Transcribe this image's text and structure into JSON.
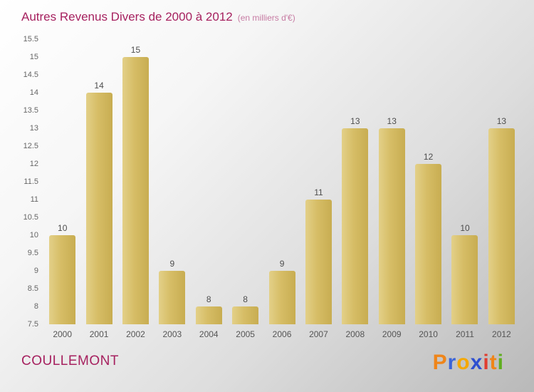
{
  "chart": {
    "title": "Autres Revenus Divers de 2000 à 2012",
    "subtitle": "(en milliers d'€)"
  },
  "chart_data": {
    "type": "bar",
    "title": "Autres Revenus Divers de 2000 à 2012",
    "subtitle": "(en milliers d'€)",
    "categories": [
      "2000",
      "2001",
      "2002",
      "2003",
      "2004",
      "2005",
      "2006",
      "2007",
      "2008",
      "2009",
      "2010",
      "2011",
      "2012"
    ],
    "values": [
      10,
      14,
      15,
      9,
      8,
      8,
      9,
      11,
      13,
      13,
      12,
      10,
      13
    ],
    "xlabel": "",
    "ylabel": "",
    "ylim": [
      7.5,
      15.5
    ],
    "ytick_step": 0.5,
    "grid": false,
    "legend": false,
    "value_labels": true,
    "bar_color": "#d6bd66"
  },
  "footer": {
    "commune": "COULLEMONT",
    "logo_text": "Proxiti",
    "logo_letters": [
      {
        "ch": "P",
        "color": "#ef8519"
      },
      {
        "ch": "r",
        "color": "#3b64d8"
      },
      {
        "ch": "o",
        "color": "#f5a800"
      },
      {
        "ch": "x",
        "color": "#2e4fd0"
      },
      {
        "ch": "i",
        "color": "#e03c2e"
      },
      {
        "ch": "t",
        "color": "#ef8519"
      },
      {
        "ch": "i",
        "color": "#5fae1f"
      }
    ]
  }
}
